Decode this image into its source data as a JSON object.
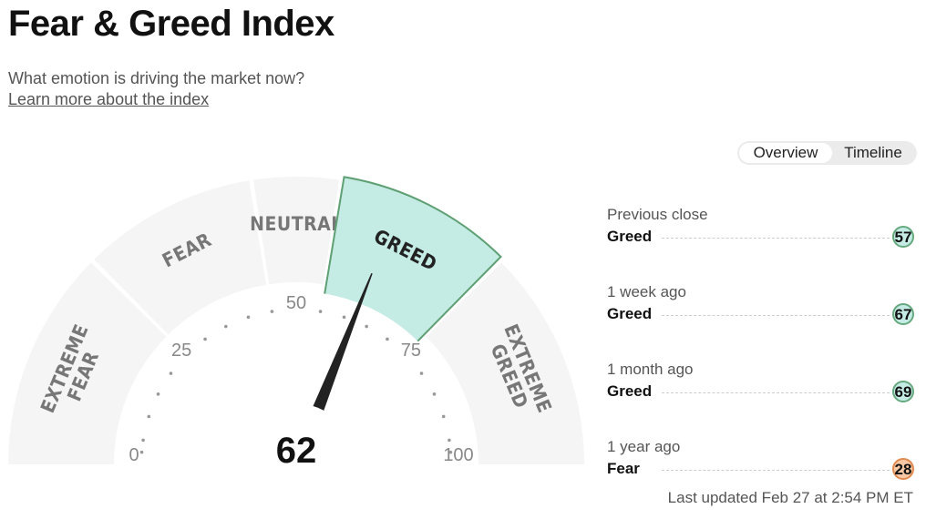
{
  "header": {
    "title": "Fear & Greed Index",
    "subtitle": "What emotion is driving the market now?",
    "learn_link": "Learn more about the index"
  },
  "view_toggle": {
    "options": [
      "Overview",
      "Timeline"
    ],
    "selected": "Overview"
  },
  "gauge": {
    "value": 62,
    "value_label": "62",
    "min": 0,
    "max": 100,
    "zones": [
      {
        "label_lines": [
          "EXTREME",
          "FEAR"
        ],
        "from": 0,
        "to": 25,
        "active": false
      },
      {
        "label_lines": [
          "FEAR"
        ],
        "from": 25,
        "to": 45,
        "active": false
      },
      {
        "label_lines": [
          "NEUTRAL"
        ],
        "from": 45,
        "to": 55,
        "active": false
      },
      {
        "label_lines": [
          "GREED"
        ],
        "from": 55,
        "to": 75,
        "active": true
      },
      {
        "label_lines": [
          "EXTREME",
          "GREED"
        ],
        "from": 75,
        "to": 100,
        "active": false
      }
    ],
    "tick_labels": [
      {
        "text": "0",
        "value": 0
      },
      {
        "text": "25",
        "value": 25
      },
      {
        "text": "50",
        "value": 50
      },
      {
        "text": "75",
        "value": 75
      },
      {
        "text": "100",
        "value": 100
      }
    ],
    "colors": {
      "inactive_zone": "#f5f5f5",
      "active_zone": "#c4ebe4",
      "active_zone_border": "#5f9f74",
      "needle": "#222222",
      "dots": "#999999"
    }
  },
  "history": [
    {
      "label": "Previous close",
      "rating": "Greed",
      "value": "57",
      "tone": "greed"
    },
    {
      "label": "1 week ago",
      "rating": "Greed",
      "value": "67",
      "tone": "greed"
    },
    {
      "label": "1 month ago",
      "rating": "Greed",
      "value": "69",
      "tone": "greed"
    },
    {
      "label": "1 year ago",
      "rating": "Fear",
      "value": "28",
      "tone": "fear"
    }
  ],
  "last_updated": "Last updated Feb 27 at 2:54 PM ET"
}
